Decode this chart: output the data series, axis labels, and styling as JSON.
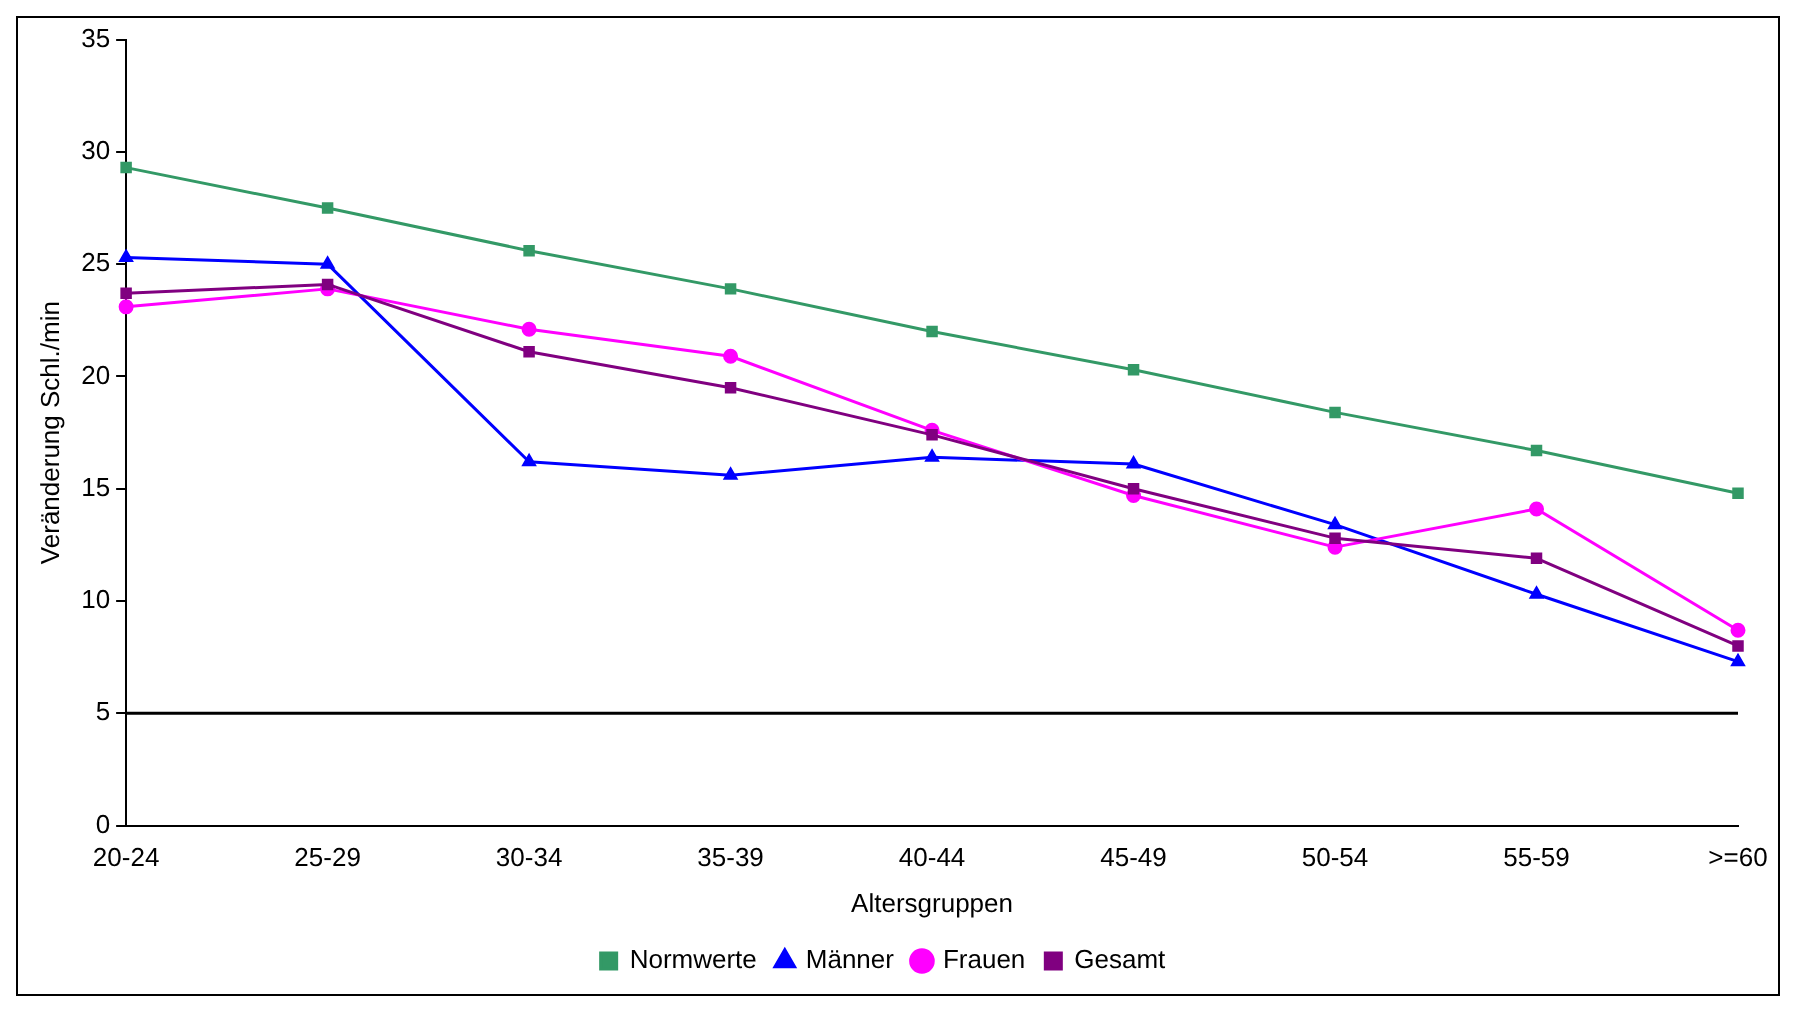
{
  "chart_data": {
    "type": "line",
    "xlabel": "Altersgruppen",
    "ylabel": "Veränderung Schl./min",
    "categories": [
      "20-24",
      "25-29",
      "30-34",
      "35-39",
      "40-44",
      "45-49",
      "50-54",
      "55-59",
      ">=60"
    ],
    "series": [
      {
        "name": "Normwerte",
        "color": "#339966",
        "marker": "square",
        "values": [
          29.3,
          27.5,
          25.6,
          23.9,
          22.0,
          20.3,
          18.4,
          16.7,
          14.8
        ]
      },
      {
        "name": "Männer",
        "color": "#0000ff",
        "marker": "triangle",
        "values": [
          25.3,
          25.0,
          16.2,
          15.6,
          16.4,
          16.1,
          13.4,
          10.3,
          7.3
        ]
      },
      {
        "name": "Frauen",
        "color": "#ff00ff",
        "marker": "circle",
        "values": [
          23.1,
          23.9,
          22.1,
          20.9,
          17.6,
          14.7,
          12.4,
          14.1,
          8.7
        ]
      },
      {
        "name": "Gesamt",
        "color": "#800080",
        "marker": "square",
        "values": [
          23.7,
          24.1,
          21.1,
          19.5,
          17.4,
          15.0,
          12.8,
          11.9,
          8.0
        ]
      }
    ],
    "ylim": [
      0,
      35
    ],
    "yticks": [
      0,
      5,
      10,
      15,
      20,
      25,
      30,
      35
    ],
    "ref_lines": [
      {
        "axis": "y",
        "value": 5,
        "color": "#000000"
      }
    ],
    "grid": false,
    "legend": "bottom"
  }
}
